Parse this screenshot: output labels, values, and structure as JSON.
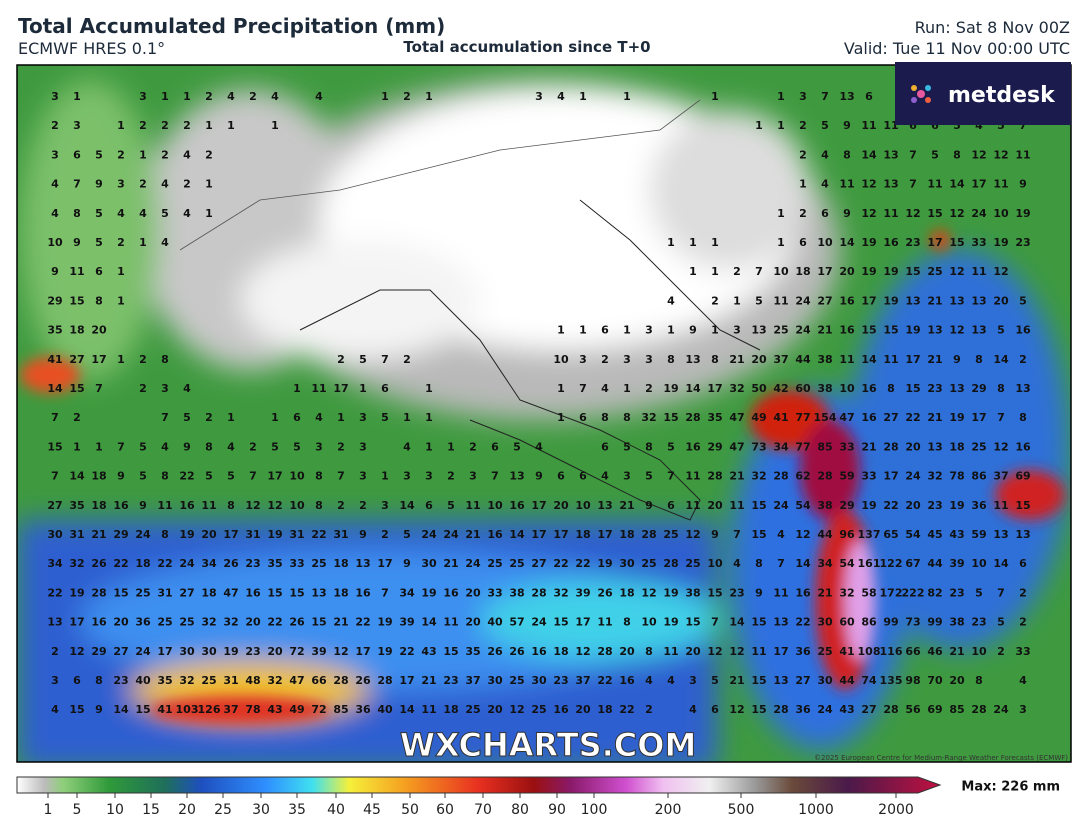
{
  "header": {
    "title": "Total Accumulated Precipitation (mm)",
    "model": "ECMWF HRES 0.1°",
    "subtitle": "Total accumulation since T+0",
    "run": "Run: Sat 8 Nov 00Z",
    "valid": "Valid: Tue 11 Nov 00:00 UTC"
  },
  "logo": "metdesk",
  "watermark": "WXCHARTS.COM",
  "copyright": "©2025 European Centre for Medium-Range Weather Forecasts (ECMWF)",
  "map": {
    "grid": [
      [
        3,
        1,
        null,
        null,
        3,
        1,
        1,
        2,
        4,
        2,
        4,
        null,
        4,
        null,
        null,
        1,
        2,
        1,
        null,
        null,
        null,
        null,
        3,
        4,
        1,
        null,
        1,
        null,
        null,
        null,
        1,
        null,
        null,
        1,
        3,
        7,
        13,
        6
      ],
      [
        2,
        3,
        null,
        1,
        2,
        2,
        2,
        1,
        1,
        null,
        1,
        null,
        null,
        null,
        null,
        null,
        null,
        null,
        null,
        null,
        null,
        null,
        null,
        null,
        null,
        null,
        null,
        null,
        null,
        null,
        null,
        null,
        1,
        1,
        2,
        5,
        9,
        11,
        11,
        6,
        6,
        5,
        4,
        5,
        7
      ],
      [
        3,
        6,
        5,
        2,
        1,
        2,
        4,
        2,
        null,
        null,
        null,
        null,
        null,
        null,
        null,
        null,
        null,
        null,
        null,
        null,
        null,
        null,
        null,
        null,
        null,
        null,
        null,
        null,
        null,
        null,
        null,
        null,
        null,
        null,
        2,
        4,
        8,
        14,
        13,
        7,
        5,
        8,
        12,
        12,
        11
      ],
      [
        4,
        7,
        9,
        3,
        2,
        4,
        2,
        1,
        null,
        null,
        null,
        null,
        null,
        null,
        null,
        null,
        null,
        null,
        null,
        null,
        null,
        null,
        null,
        null,
        null,
        null,
        null,
        null,
        null,
        null,
        null,
        null,
        null,
        null,
        1,
        4,
        11,
        12,
        13,
        7,
        11,
        14,
        17,
        11,
        9
      ],
      [
        4,
        8,
        5,
        4,
        4,
        5,
        4,
        1,
        null,
        null,
        null,
        null,
        null,
        null,
        null,
        null,
        null,
        null,
        null,
        null,
        null,
        null,
        null,
        null,
        null,
        null,
        null,
        null,
        null,
        null,
        null,
        null,
        null,
        1,
        2,
        6,
        9,
        12,
        11,
        12,
        15,
        12,
        24,
        10,
        19
      ],
      [
        10,
        9,
        5,
        2,
        1,
        4,
        null,
        null,
        null,
        null,
        null,
        null,
        null,
        null,
        null,
        null,
        null,
        null,
        null,
        null,
        null,
        null,
        null,
        null,
        null,
        null,
        null,
        null,
        1,
        1,
        1,
        null,
        null,
        1,
        6,
        10,
        14,
        19,
        16,
        23,
        17,
        15,
        33,
        19,
        23
      ],
      [
        9,
        11,
        6,
        1,
        null,
        null,
        null,
        null,
        null,
        null,
        null,
        null,
        null,
        null,
        null,
        null,
        null,
        null,
        null,
        null,
        null,
        null,
        null,
        null,
        null,
        null,
        null,
        null,
        null,
        1,
        1,
        2,
        7,
        10,
        18,
        17,
        20,
        19,
        19,
        15,
        25,
        12,
        11,
        12
      ],
      [
        29,
        15,
        8,
        1,
        null,
        null,
        null,
        null,
        null,
        null,
        null,
        null,
        null,
        null,
        null,
        null,
        null,
        null,
        null,
        null,
        null,
        null,
        null,
        null,
        null,
        null,
        null,
        null,
        4,
        null,
        2,
        1,
        5,
        11,
        24,
        27,
        16,
        17,
        19,
        13,
        21,
        13,
        13,
        20,
        5
      ],
      [
        35,
        18,
        20,
        null,
        null,
        null,
        null,
        null,
        null,
        null,
        null,
        null,
        null,
        null,
        null,
        null,
        null,
        null,
        null,
        null,
        null,
        null,
        null,
        1,
        1,
        6,
        1,
        3,
        1,
        9,
        1,
        3,
        13,
        25,
        24,
        21,
        16,
        15,
        15,
        19,
        13,
        12,
        13,
        5,
        16
      ],
      [
        41,
        27,
        17,
        1,
        2,
        8,
        null,
        null,
        null,
        null,
        null,
        null,
        null,
        2,
        5,
        7,
        2,
        null,
        null,
        null,
        null,
        null,
        null,
        10,
        3,
        2,
        3,
        3,
        8,
        13,
        8,
        21,
        20,
        37,
        44,
        38,
        11,
        14,
        11,
        17,
        21,
        9,
        8,
        14,
        2
      ],
      [
        14,
        15,
        7,
        null,
        2,
        3,
        4,
        null,
        null,
        null,
        null,
        1,
        11,
        17,
        1,
        6,
        null,
        1,
        null,
        null,
        null,
        null,
        null,
        1,
        7,
        4,
        1,
        2,
        19,
        14,
        17,
        32,
        50,
        42,
        60,
        38,
        10,
        16,
        8,
        15,
        23,
        13,
        29,
        8,
        13
      ],
      [
        7,
        2,
        null,
        null,
        null,
        7,
        5,
        2,
        1,
        null,
        1,
        6,
        4,
        1,
        3,
        5,
        1,
        1,
        null,
        null,
        null,
        null,
        null,
        1,
        6,
        8,
        8,
        32,
        15,
        28,
        35,
        47,
        49,
        41,
        77,
        154,
        47,
        16,
        27,
        22,
        21,
        19,
        17,
        7,
        8
      ],
      [
        15,
        1,
        1,
        7,
        5,
        4,
        9,
        8,
        4,
        2,
        5,
        5,
        3,
        2,
        3,
        null,
        4,
        1,
        1,
        2,
        6,
        5,
        4,
        null,
        null,
        6,
        5,
        8,
        5,
        16,
        29,
        47,
        73,
        34,
        77,
        85,
        33,
        21,
        28,
        20,
        13,
        18,
        25,
        12,
        16
      ],
      [
        7,
        14,
        18,
        9,
        5,
        8,
        22,
        5,
        5,
        7,
        17,
        10,
        8,
        7,
        3,
        1,
        3,
        3,
        2,
        3,
        7,
        13,
        9,
        6,
        6,
        4,
        3,
        5,
        7,
        11,
        28,
        21,
        32,
        28,
        62,
        28,
        59,
        33,
        17,
        24,
        32,
        78,
        86,
        37,
        69
      ],
      [
        27,
        35,
        18,
        16,
        9,
        11,
        16,
        11,
        8,
        12,
        12,
        10,
        8,
        2,
        2,
        3,
        14,
        6,
        5,
        11,
        10,
        16,
        17,
        20,
        10,
        13,
        21,
        9,
        6,
        11,
        20,
        11,
        15,
        24,
        54,
        38,
        29,
        19,
        22,
        20,
        23,
        19,
        36,
        11,
        15
      ],
      [
        30,
        31,
        21,
        29,
        24,
        8,
        19,
        20,
        17,
        31,
        19,
        31,
        22,
        31,
        9,
        2,
        5,
        24,
        24,
        21,
        16,
        14,
        17,
        17,
        18,
        17,
        18,
        28,
        25,
        12,
        9,
        7,
        15,
        4,
        12,
        44,
        96,
        137,
        65,
        54,
        45,
        43,
        59,
        13,
        13
      ],
      [
        34,
        32,
        26,
        22,
        18,
        22,
        24,
        34,
        26,
        23,
        35,
        33,
        25,
        18,
        13,
        17,
        9,
        30,
        21,
        24,
        25,
        25,
        27,
        22,
        22,
        19,
        30,
        25,
        28,
        25,
        10,
        4,
        8,
        7,
        14,
        34,
        54,
        161,
        122,
        67,
        44,
        39,
        10,
        14,
        6
      ],
      [
        22,
        19,
        28,
        15,
        25,
        31,
        27,
        18,
        47,
        16,
        15,
        15,
        13,
        18,
        16,
        7,
        34,
        19,
        16,
        20,
        33,
        38,
        28,
        32,
        39,
        26,
        18,
        12,
        19,
        38,
        15,
        23,
        9,
        11,
        16,
        21,
        32,
        58,
        172,
        222,
        82,
        23,
        5,
        7,
        2
      ],
      [
        13,
        17,
        16,
        20,
        36,
        25,
        25,
        32,
        32,
        20,
        22,
        26,
        15,
        21,
        22,
        19,
        39,
        14,
        11,
        20,
        40,
        57,
        24,
        15,
        17,
        11,
        8,
        10,
        19,
        15,
        7,
        14,
        15,
        13,
        22,
        30,
        60,
        86,
        99,
        73,
        99,
        38,
        23,
        5,
        2
      ],
      [
        2,
        12,
        29,
        27,
        24,
        17,
        30,
        30,
        19,
        23,
        20,
        72,
        39,
        12,
        17,
        19,
        22,
        43,
        15,
        35,
        26,
        26,
        16,
        18,
        12,
        28,
        20,
        8,
        11,
        20,
        12,
        12,
        11,
        17,
        36,
        25,
        41,
        108,
        116,
        66,
        46,
        21,
        10,
        2,
        33
      ],
      [
        3,
        6,
        8,
        23,
        40,
        35,
        32,
        25,
        31,
        48,
        32,
        47,
        66,
        28,
        26,
        28,
        17,
        21,
        23,
        37,
        30,
        25,
        30,
        23,
        37,
        22,
        16,
        4,
        4,
        3,
        5,
        21,
        15,
        13,
        27,
        30,
        44,
        74,
        135,
        98,
        70,
        20,
        8,
        null,
        4
      ],
      [
        4,
        15,
        9,
        14,
        15,
        41,
        103,
        126,
        37,
        78,
        43,
        49,
        72,
        85,
        36,
        40,
        14,
        11,
        18,
        25,
        20,
        12,
        25,
        16,
        20,
        18,
        22,
        2,
        null,
        4,
        6,
        12,
        15,
        28,
        36,
        24,
        43,
        27,
        28,
        56,
        69,
        85,
        28,
        24,
        3
      ]
    ]
  },
  "colorbar": {
    "ticks": [
      1,
      5,
      10,
      15,
      20,
      25,
      30,
      35,
      40,
      45,
      50,
      60,
      70,
      80,
      90,
      100,
      200,
      500,
      1000,
      2000
    ],
    "max_label": "Max: 226 mm"
  }
}
